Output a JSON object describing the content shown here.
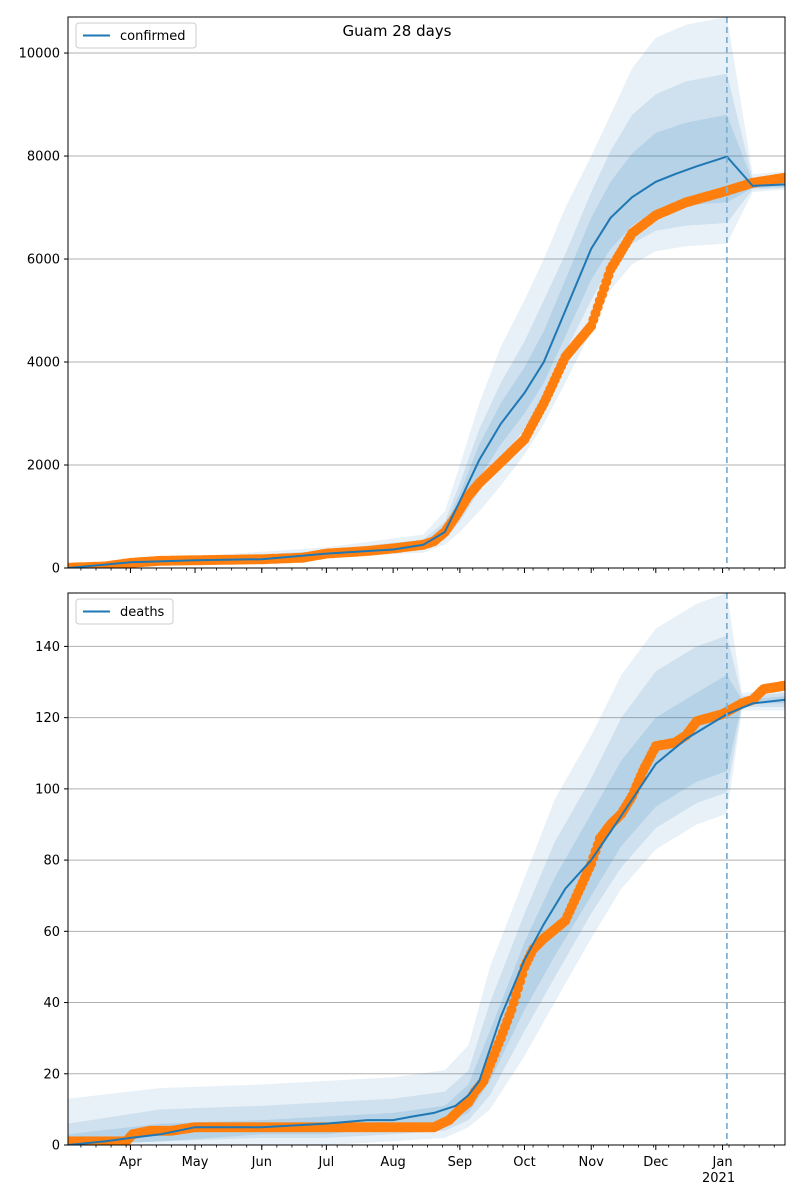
{
  "suptitle": "Guam 28 days",
  "colors": {
    "model": "#1f77b4",
    "observed": "#ff7f0e",
    "band": "#1f77b4",
    "grid": "#b0b0b0",
    "cutoff": "#7fb0d6"
  },
  "chart_data": [
    {
      "type": "line",
      "panel": "top",
      "title": "Guam 28 days",
      "legend": [
        "confirmed"
      ],
      "legend_position": "top-left",
      "grid_y": true,
      "xlim": [
        "2020-03-03",
        "2021-01-30"
      ],
      "ylim": [
        0,
        10700
      ],
      "yticks": [
        0,
        2000,
        4000,
        6000,
        8000,
        10000
      ],
      "xticks": [
        {
          "date": "2020-04-01",
          "label": "Apr"
        },
        {
          "date": "2020-05-01",
          "label": "May"
        },
        {
          "date": "2020-06-01",
          "label": "Jun"
        },
        {
          "date": "2020-07-01",
          "label": "Jul"
        },
        {
          "date": "2020-08-01",
          "label": "Aug"
        },
        {
          "date": "2020-09-01",
          "label": "Sep"
        },
        {
          "date": "2020-10-01",
          "label": "Oct"
        },
        {
          "date": "2020-11-01",
          "label": "Nov"
        },
        {
          "date": "2020-12-01",
          "label": "Dec"
        },
        {
          "date": "2021-01-01",
          "label": "Jan",
          "sublabel": "2021"
        }
      ],
      "forecast_start": "2021-01-03",
      "series": [
        {
          "name": "confirmed",
          "kind": "model",
          "x": [
            "2020-03-03",
            "2020-04-01",
            "2020-05-01",
            "2020-06-01",
            "2020-07-01",
            "2020-08-01",
            "2020-08-15",
            "2020-08-25",
            "2020-09-01",
            "2020-09-10",
            "2020-09-20",
            "2020-10-01",
            "2020-10-10",
            "2020-10-20",
            "2020-11-01",
            "2020-11-10",
            "2020-11-20",
            "2020-12-01",
            "2020-12-10",
            "2020-12-20",
            "2021-01-03",
            "2021-01-15",
            "2021-01-30"
          ],
          "y": [
            0,
            110,
            150,
            170,
            280,
            360,
            450,
            700,
            1300,
            2100,
            2800,
            3400,
            4000,
            5000,
            6200,
            6800,
            7200,
            7500,
            7650,
            7800,
            7990,
            7420,
            7450
          ]
        },
        {
          "name": "observed confirmed",
          "kind": "observed",
          "x": [
            "2020-03-03",
            "2020-03-20",
            "2020-04-01",
            "2020-04-15",
            "2020-05-01",
            "2020-06-01",
            "2020-06-20",
            "2020-07-01",
            "2020-07-20",
            "2020-08-01",
            "2020-08-15",
            "2020-08-20",
            "2020-08-25",
            "2020-08-30",
            "2020-09-05",
            "2020-09-10",
            "2020-09-20",
            "2020-10-01",
            "2020-10-10",
            "2020-10-20",
            "2020-11-01",
            "2020-11-10",
            "2020-11-20",
            "2020-12-01",
            "2020-12-15",
            "2021-01-01",
            "2021-01-15",
            "2021-01-30"
          ],
          "y": [
            5,
            30,
            100,
            140,
            150,
            170,
            200,
            280,
            330,
            380,
            450,
            520,
            700,
            1000,
            1400,
            1650,
            2050,
            2500,
            3200,
            4100,
            4700,
            5800,
            6500,
            6850,
            7100,
            7300,
            7480,
            7580
          ]
        }
      ],
      "bands": [
        {
          "level": "outer",
          "x": [
            "2020-03-03",
            "2020-07-01",
            "2020-08-15",
            "2020-08-25",
            "2020-09-01",
            "2020-09-10",
            "2020-09-20",
            "2020-10-01",
            "2020-10-10",
            "2020-10-20",
            "2020-11-01",
            "2020-11-10",
            "2020-11-20",
            "2020-12-01",
            "2020-12-15",
            "2021-01-03",
            "2021-01-15",
            "2021-01-30"
          ],
          "lower": [
            0,
            200,
            300,
            450,
            700,
            1100,
            1600,
            2200,
            2800,
            3600,
            4600,
            5400,
            5900,
            6150,
            6250,
            6300,
            7300,
            7350
          ],
          "upper": [
            60,
            400,
            650,
            1100,
            2000,
            3200,
            4300,
            5200,
            6000,
            7000,
            8000,
            8800,
            9700,
            10300,
            10550,
            10700,
            7650,
            7700
          ]
        },
        {
          "level": "middle",
          "x": [
            "2020-03-03",
            "2020-07-01",
            "2020-08-15",
            "2020-08-25",
            "2020-09-01",
            "2020-09-10",
            "2020-09-20",
            "2020-10-01",
            "2020-10-10",
            "2020-10-20",
            "2020-11-01",
            "2020-11-10",
            "2020-11-20",
            "2020-12-01",
            "2020-12-15",
            "2021-01-03",
            "2021-01-15",
            "2021-01-30"
          ],
          "lower": [
            0,
            240,
            360,
            550,
            900,
            1500,
            2100,
            2700,
            3300,
            4200,
            5200,
            5900,
            6300,
            6550,
            6650,
            6700,
            7350,
            7380
          ],
          "upper": [
            40,
            340,
            560,
            900,
            1650,
            2700,
            3600,
            4400,
            5200,
            6100,
            7300,
            8100,
            8800,
            9200,
            9450,
            9600,
            7550,
            7600
          ]
        },
        {
          "level": "inner",
          "x": [
            "2020-03-03",
            "2020-07-01",
            "2020-08-15",
            "2020-08-25",
            "2020-09-01",
            "2020-09-10",
            "2020-09-20",
            "2020-10-01",
            "2020-10-10",
            "2020-10-20",
            "2020-11-01",
            "2020-11-10",
            "2020-11-20",
            "2020-12-01",
            "2020-12-15",
            "2021-01-03",
            "2021-01-15",
            "2021-01-30"
          ],
          "lower": [
            0,
            260,
            400,
            620,
            1050,
            1750,
            2400,
            3000,
            3600,
            4500,
            5600,
            6200,
            6650,
            6950,
            7050,
            7100,
            7380,
            7400
          ],
          "upper": [
            25,
            310,
            500,
            800,
            1450,
            2400,
            3200,
            3900,
            4600,
            5600,
            6800,
            7500,
            8050,
            8450,
            8650,
            8800,
            7500,
            7530
          ]
        }
      ]
    },
    {
      "type": "line",
      "panel": "bottom",
      "legend": [
        "deaths"
      ],
      "legend_position": "top-left",
      "grid_y": true,
      "xlim": [
        "2020-03-03",
        "2021-01-30"
      ],
      "ylim": [
        0,
        155
      ],
      "yticks": [
        0,
        20,
        40,
        60,
        80,
        100,
        120,
        140
      ],
      "xticks": [
        {
          "date": "2020-04-01",
          "label": "Apr"
        },
        {
          "date": "2020-05-01",
          "label": "May"
        },
        {
          "date": "2020-06-01",
          "label": "Jun"
        },
        {
          "date": "2020-07-01",
          "label": "Jul"
        },
        {
          "date": "2020-08-01",
          "label": "Aug"
        },
        {
          "date": "2020-09-01",
          "label": "Sep"
        },
        {
          "date": "2020-10-01",
          "label": "Oct"
        },
        {
          "date": "2020-11-01",
          "label": "Nov"
        },
        {
          "date": "2020-12-01",
          "label": "Dec"
        },
        {
          "date": "2021-01-01",
          "label": "Jan",
          "sublabel": "2021"
        }
      ],
      "forecast_start": "2021-01-03",
      "series": [
        {
          "name": "deaths",
          "kind": "model",
          "x": [
            "2020-03-03",
            "2020-03-20",
            "2020-04-01",
            "2020-04-15",
            "2020-05-01",
            "2020-06-01",
            "2020-07-01",
            "2020-07-20",
            "2020-08-01",
            "2020-08-10",
            "2020-08-20",
            "2020-08-30",
            "2020-09-05",
            "2020-09-10",
            "2020-09-20",
            "2020-10-01",
            "2020-10-10",
            "2020-10-20",
            "2020-11-01",
            "2020-11-10",
            "2020-11-20",
            "2020-12-01",
            "2020-12-15",
            "2021-01-03",
            "2021-01-15",
            "2021-01-30"
          ],
          "y": [
            0,
            1,
            2,
            3,
            5,
            5,
            6,
            7,
            7,
            8,
            9,
            11,
            14,
            18,
            36,
            52,
            62,
            72,
            80,
            88,
            97,
            107,
            114,
            121,
            124,
            125
          ]
        },
        {
          "name": "observed deaths",
          "kind": "observed",
          "x": [
            "2020-03-03",
            "2020-03-30",
            "2020-04-02",
            "2020-04-10",
            "2020-04-20",
            "2020-05-01",
            "2020-06-01",
            "2020-07-01",
            "2020-08-01",
            "2020-08-20",
            "2020-08-27",
            "2020-09-01",
            "2020-09-05",
            "2020-09-08",
            "2020-09-12",
            "2020-09-20",
            "2020-09-25",
            "2020-10-01",
            "2020-10-05",
            "2020-10-10",
            "2020-10-20",
            "2020-11-01",
            "2020-11-05",
            "2020-11-10",
            "2020-11-15",
            "2020-11-20",
            "2020-11-25",
            "2020-12-01",
            "2020-12-10",
            "2020-12-15",
            "2020-12-20",
            "2021-01-01",
            "2021-01-10",
            "2021-01-15",
            "2021-01-20",
            "2021-01-30"
          ],
          "y": [
            1,
            1,
            3,
            4,
            4,
            5,
            5,
            5,
            5,
            5,
            7,
            10,
            12,
            15,
            18,
            30,
            38,
            50,
            55,
            58,
            63,
            79,
            86,
            90,
            93,
            98,
            105,
            112,
            113,
            115,
            119,
            121,
            124,
            125,
            128,
            129
          ]
        }
      ],
      "bands": [
        {
          "level": "outer",
          "x": [
            "2020-03-03",
            "2020-04-15",
            "2020-06-01",
            "2020-07-01",
            "2020-08-01",
            "2020-08-25",
            "2020-09-05",
            "2020-09-15",
            "2020-10-01",
            "2020-10-15",
            "2020-11-01",
            "2020-11-15",
            "2020-12-01",
            "2020-12-20",
            "2021-01-03",
            "2021-01-10",
            "2021-01-30"
          ],
          "lower": [
            0,
            0,
            0,
            0,
            1,
            2,
            5,
            10,
            25,
            40,
            58,
            72,
            83,
            90,
            93,
            122,
            122
          ],
          "upper": [
            13,
            16,
            17,
            18,
            19,
            21,
            28,
            50,
            75,
            97,
            115,
            132,
            145,
            152,
            155,
            127,
            128
          ]
        },
        {
          "level": "middle",
          "x": [
            "2020-03-03",
            "2020-04-15",
            "2020-06-01",
            "2020-07-01",
            "2020-08-01",
            "2020-08-25",
            "2020-09-05",
            "2020-09-15",
            "2020-10-01",
            "2020-10-15",
            "2020-11-01",
            "2020-11-15",
            "2020-12-01",
            "2020-12-20",
            "2021-01-03",
            "2021-01-10",
            "2021-01-30"
          ],
          "lower": [
            0,
            1,
            2,
            2,
            3,
            4,
            7,
            14,
            32,
            47,
            65,
            78,
            89,
            96,
            99,
            123,
            123
          ],
          "upper": [
            6,
            10,
            11,
            12,
            13,
            15,
            21,
            40,
            65,
            85,
            103,
            120,
            133,
            140,
            143,
            126,
            127
          ]
        },
        {
          "level": "inner",
          "x": [
            "2020-03-03",
            "2020-04-15",
            "2020-06-01",
            "2020-07-01",
            "2020-08-01",
            "2020-08-25",
            "2020-09-05",
            "2020-09-15",
            "2020-10-01",
            "2020-10-15",
            "2020-11-01",
            "2020-11-15",
            "2020-12-01",
            "2020-12-20",
            "2021-01-03",
            "2021-01-10",
            "2021-01-30"
          ],
          "lower": [
            0,
            1,
            3,
            3,
            5,
            6,
            9,
            18,
            38,
            53,
            70,
            84,
            95,
            102,
            105,
            124,
            124
          ],
          "upper": [
            3,
            6,
            7,
            8,
            9,
            11,
            17,
            32,
            57,
            75,
            93,
            108,
            120,
            127,
            132,
            125,
            126
          ]
        }
      ]
    }
  ]
}
